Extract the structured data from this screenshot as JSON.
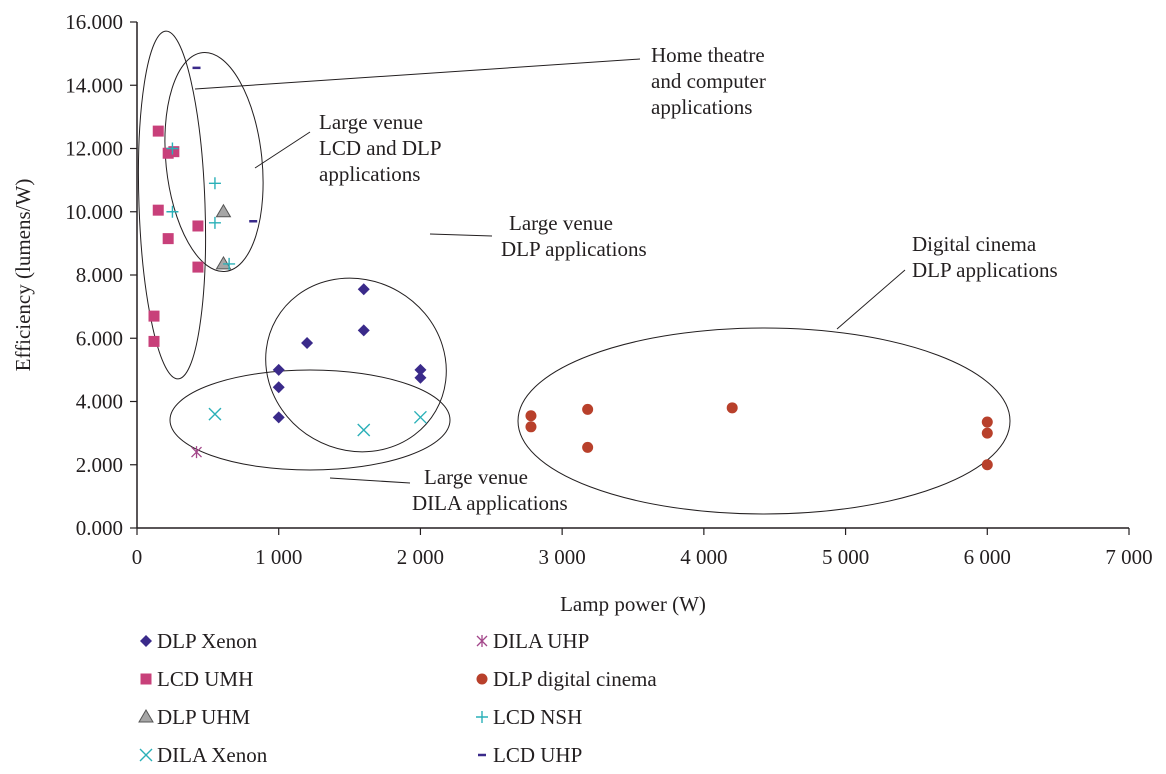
{
  "chart_data": {
    "type": "scatter",
    "title": "",
    "xlabel": "Lamp power (W)",
    "ylabel": "Efficiency (lumens/W)",
    "xlim": [
      0,
      7000
    ],
    "ylim": [
      0,
      16
    ],
    "xticks": [
      {
        "value": 0,
        "label": "0"
      },
      {
        "value": 1000,
        "label": "1 000"
      },
      {
        "value": 2000,
        "label": "2 000"
      },
      {
        "value": 3000,
        "label": "3 000"
      },
      {
        "value": 4000,
        "label": "4 000"
      },
      {
        "value": 5000,
        "label": "5 000"
      },
      {
        "value": 6000,
        "label": "6 000"
      },
      {
        "value": 7000,
        "label": "7 000"
      }
    ],
    "yticks": [
      {
        "value": 0,
        "label": "0.000"
      },
      {
        "value": 2,
        "label": "2.000"
      },
      {
        "value": 4,
        "label": "4.000"
      },
      {
        "value": 6,
        "label": "6.000"
      },
      {
        "value": 8,
        "label": "8.000"
      },
      {
        "value": 10,
        "label": "10.000"
      },
      {
        "value": 12,
        "label": "12.000"
      },
      {
        "value": 14,
        "label": "14.000"
      },
      {
        "value": 16,
        "label": "16.000"
      }
    ],
    "grid": false,
    "legend_position": "bottom",
    "series": [
      {
        "name": "DLP Xenon",
        "marker": "diamond",
        "color": "#3a2a8a",
        "points": [
          [
            1000,
            5.0
          ],
          [
            1000,
            4.45
          ],
          [
            1000,
            3.5
          ],
          [
            1200,
            5.85
          ],
          [
            1600,
            7.55
          ],
          [
            1600,
            6.25
          ],
          [
            2000,
            5.0
          ],
          [
            2000,
            4.75
          ]
        ]
      },
      {
        "name": "LCD UMH",
        "marker": "square",
        "color": "#c8407a",
        "points": [
          [
            150,
            12.55
          ],
          [
            220,
            11.85
          ],
          [
            260,
            11.9
          ],
          [
            150,
            10.05
          ],
          [
            220,
            9.15
          ],
          [
            430,
            9.55
          ],
          [
            430,
            8.25
          ],
          [
            120,
            6.7
          ],
          [
            120,
            5.9
          ]
        ]
      },
      {
        "name": "DLP UHM",
        "marker": "triangle",
        "color": "#a6a6a6",
        "points": [
          [
            610,
            10.0
          ],
          [
            610,
            8.35
          ]
        ]
      },
      {
        "name": "DILA Xenon",
        "marker": "x",
        "color": "#2ab0b8",
        "points": [
          [
            550,
            3.6
          ],
          [
            1600,
            3.1
          ],
          [
            2000,
            3.5
          ]
        ]
      },
      {
        "name": "DILA UHP",
        "marker": "asterisk",
        "color": "#a3478a",
        "points": [
          [
            420,
            2.4
          ]
        ]
      },
      {
        "name": "DLP digital cinema",
        "marker": "circle",
        "color": "#b8402b",
        "points": [
          [
            2780,
            3.55
          ],
          [
            2780,
            3.2
          ],
          [
            3180,
            3.75
          ],
          [
            3180,
            2.55
          ],
          [
            4200,
            3.8
          ],
          [
            6000,
            3.35
          ],
          [
            6000,
            3.0
          ],
          [
            6000,
            2.0
          ]
        ]
      },
      {
        "name": "LCD NSH",
        "marker": "plus",
        "color": "#2ab0b8",
        "points": [
          [
            250,
            12.0
          ],
          [
            250,
            10.0
          ],
          [
            550,
            10.9
          ],
          [
            550,
            9.65
          ],
          [
            650,
            8.35
          ]
        ]
      },
      {
        "name": "LCD UHP",
        "marker": "dash",
        "color": "#3a2a8a",
        "points": [
          [
            420,
            14.55
          ],
          [
            820,
            9.7
          ]
        ]
      }
    ],
    "annotations": [
      {
        "lines": [
          "Home theatre",
          "and computer",
          "applications"
        ]
      },
      {
        "lines": [
          "Large venue",
          "LCD and DLP",
          "applications"
        ]
      },
      {
        "lines": [
          "Large venue",
          "DLP applications"
        ]
      },
      {
        "lines": [
          "Digital cinema",
          "DLP applications"
        ]
      },
      {
        "lines": [
          "Large venue",
          "DILA applications"
        ]
      }
    ]
  }
}
